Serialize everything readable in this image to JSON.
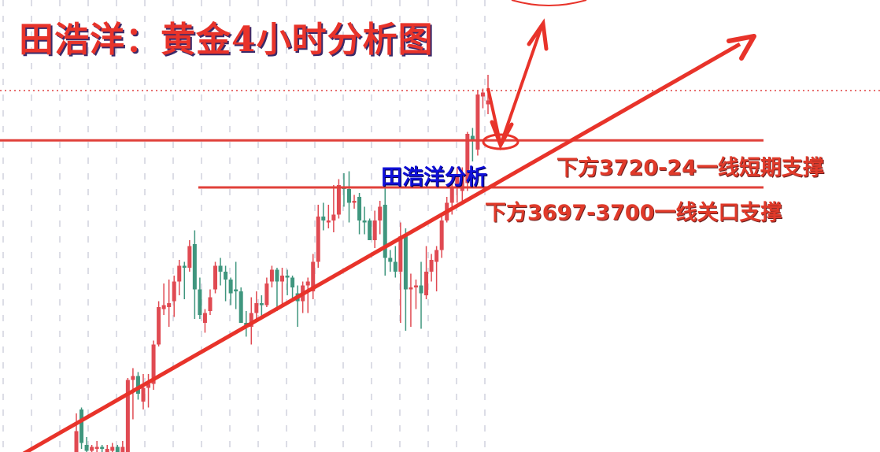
{
  "title": "田浩洋：黄金4小时分析图",
  "brand_label": "田浩洋分析",
  "annotations": {
    "upper_support": "下方3720-24一线短期支撑",
    "lower_support": "下方3697-3700一线关口支撑"
  },
  "colors": {
    "up": "#e04a52",
    "down": "#3f967e",
    "lines": "#e8332a",
    "brand": "#1010d8",
    "grid": "#dcdde6"
  },
  "chart_data": {
    "type": "candlestick",
    "title": "田浩洋：黄金4小时分析图",
    "xlabel": "",
    "ylabel": "",
    "grid": true,
    "levels": {
      "upper_support": [
        3720,
        3724
      ],
      "lower_support": [
        3697,
        3700
      ],
      "dotted_reference": 3747
    },
    "candles": [
      [
        3563,
        3583,
        3560,
        3574
      ],
      [
        3585,
        3586,
        3565,
        3568
      ],
      [
        3567,
        3571,
        3560,
        3564
      ],
      [
        3564,
        3567,
        3561,
        3566
      ],
      [
        3565,
        3569,
        3562,
        3566
      ],
      [
        3566,
        3567,
        3563,
        3565
      ],
      [
        3563,
        3567,
        3561,
        3565
      ],
      [
        3564,
        3568,
        3562,
        3566
      ],
      [
        3566,
        3567,
        3561,
        3563
      ],
      [
        3563,
        3569,
        3561,
        3566
      ],
      [
        3563,
        3601,
        3560,
        3600
      ],
      [
        3600,
        3606,
        3580,
        3602
      ],
      [
        3602,
        3604,
        3590,
        3593
      ],
      [
        3589,
        3603,
        3585,
        3596
      ],
      [
        3596,
        3603,
        3586,
        3598
      ],
      [
        3598,
        3620,
        3595,
        3618
      ],
      [
        3618,
        3640,
        3617,
        3637
      ],
      [
        3636,
        3649,
        3633,
        3638
      ],
      [
        3637,
        3651,
        3627,
        3639
      ],
      [
        3640,
        3653,
        3632,
        3650
      ],
      [
        3650,
        3661,
        3643,
        3658
      ],
      [
        3658,
        3660,
        3641,
        3657
      ],
      [
        3657,
        3671,
        3655,
        3668
      ],
      [
        3669,
        3676,
        3631,
        3646
      ],
      [
        3646,
        3652,
        3631,
        3633
      ],
      [
        3629,
        3636,
        3624,
        3634
      ],
      [
        3635,
        3646,
        3633,
        3642
      ],
      [
        3646,
        3660,
        3644,
        3658
      ],
      [
        3658,
        3662,
        3648,
        3655
      ],
      [
        3655,
        3658,
        3640,
        3651
      ],
      [
        3651,
        3652,
        3638,
        3644
      ],
      [
        3646,
        3660,
        3636,
        3645
      ],
      [
        3645,
        3647,
        3629,
        3629
      ],
      [
        3629,
        3635,
        3622,
        3627
      ],
      [
        3627,
        3642,
        3618,
        3634
      ],
      [
        3634,
        3645,
        3630,
        3639
      ],
      [
        3639,
        3643,
        3632,
        3638
      ],
      [
        3638,
        3652,
        3637,
        3649
      ],
      [
        3650,
        3658,
        3647,
        3656
      ],
      [
        3656,
        3657,
        3635,
        3650
      ],
      [
        3650,
        3657,
        3637,
        3653
      ],
      [
        3653,
        3656,
        3643,
        3652
      ],
      [
        3652,
        3653,
        3640,
        3647
      ],
      [
        3644,
        3648,
        3627,
        3640
      ],
      [
        3640,
        3650,
        3634,
        3648
      ],
      [
        3648,
        3652,
        3634,
        3650
      ],
      [
        3645,
        3664,
        3641,
        3660
      ],
      [
        3660,
        3689,
        3657,
        3683
      ],
      [
        3683,
        3690,
        3676,
        3681
      ],
      [
        3680,
        3689,
        3677,
        3681
      ],
      [
        3681,
        3699,
        3675,
        3684
      ],
      [
        3684,
        3702,
        3682,
        3699
      ],
      [
        3698,
        3705,
        3688,
        3697
      ],
      [
        3697,
        3706,
        3680,
        3690
      ],
      [
        3690,
        3694,
        3687,
        3691
      ],
      [
        3693,
        3695,
        3674,
        3681
      ],
      [
        3681,
        3688,
        3674,
        3680
      ],
      [
        3681,
        3682,
        3671,
        3671
      ],
      [
        3671,
        3686,
        3667,
        3681
      ],
      [
        3681,
        3691,
        3674,
        3688
      ],
      [
        3689,
        3702,
        3653,
        3662
      ],
      [
        3662,
        3666,
        3655,
        3660
      ],
      [
        3660,
        3668,
        3652,
        3655
      ],
      [
        3655,
        3680,
        3629,
        3673
      ],
      [
        3673,
        3677,
        3625,
        3646
      ],
      [
        3646,
        3654,
        3627,
        3647
      ],
      [
        3647,
        3651,
        3636,
        3648
      ],
      [
        3648,
        3660,
        3626,
        3644
      ],
      [
        3643,
        3668,
        3641,
        3655
      ],
      [
        3655,
        3664,
        3650,
        3661
      ],
      [
        3660,
        3668,
        3645,
        3666
      ],
      [
        3666,
        3683,
        3662,
        3681
      ],
      [
        3681,
        3693,
        3680,
        3690
      ],
      [
        3690,
        3703,
        3684,
        3698
      ],
      [
        3698,
        3708,
        3690,
        3703
      ],
      [
        3696,
        3708,
        3690,
        3705
      ],
      [
        3700,
        3726,
        3696,
        3725
      ],
      [
        3724,
        3728,
        3711,
        3722
      ],
      [
        3717,
        3747,
        3714,
        3745
      ],
      [
        3744,
        3748,
        3738,
        3746
      ],
      [
        3740,
        3755,
        3735,
        3742
      ]
    ],
    "candle_fields": [
      "open",
      "high",
      "low",
      "close"
    ]
  }
}
